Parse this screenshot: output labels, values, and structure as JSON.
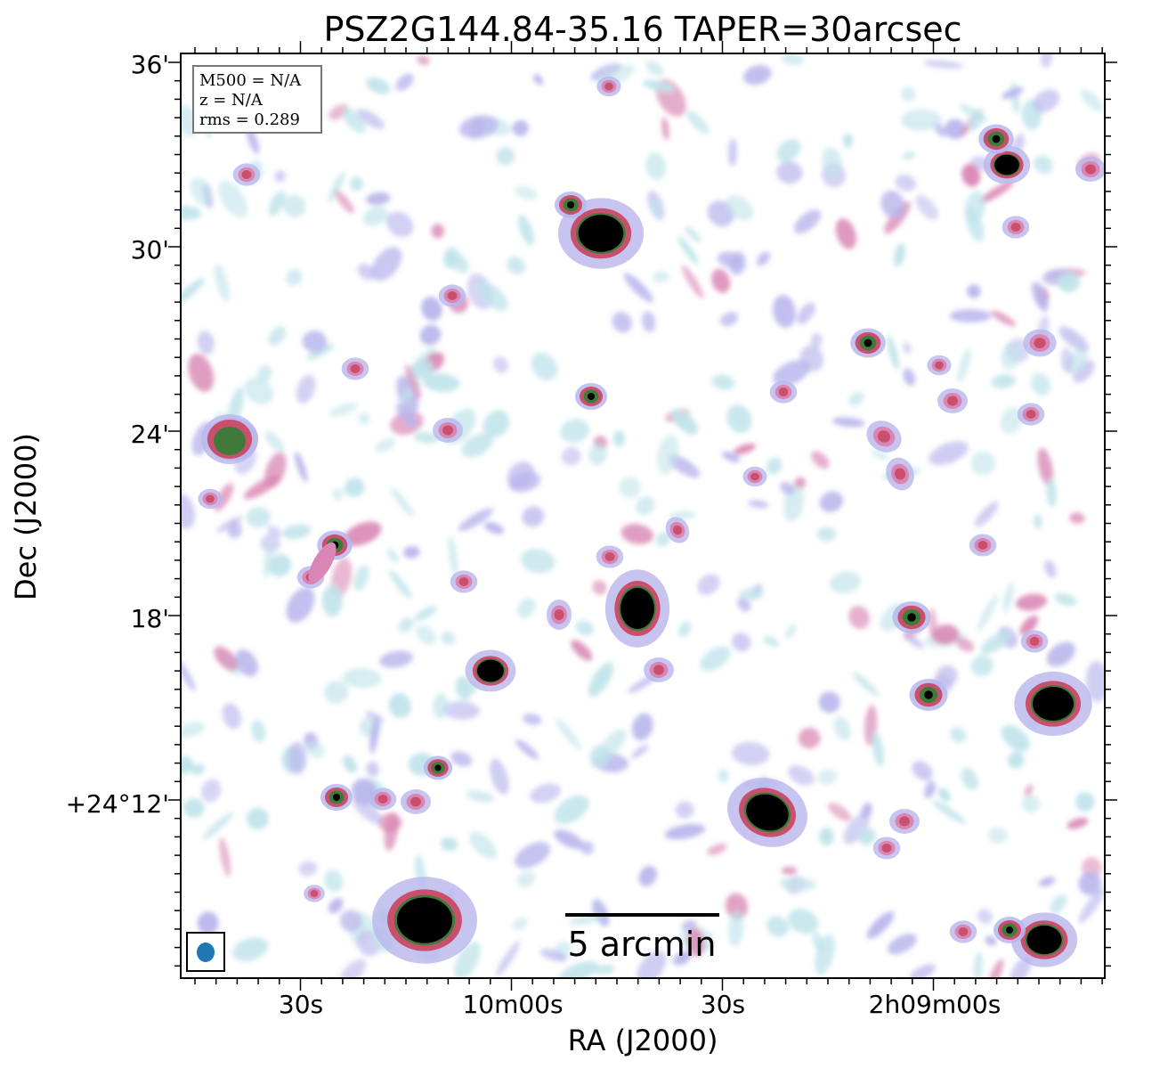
{
  "figure": {
    "title": "PSZ2G144.84-35.16 TAPER=30arcsec",
    "xlabel": "RA (J2000)",
    "ylabel": "Dec (J2000)"
  },
  "info_box": {
    "lines": [
      "M500 = N/A",
      "z = N/A",
      "rms = 0.289"
    ]
  },
  "scale_bar": {
    "label": "5 arcmin"
  },
  "axes": {
    "x_ticks": [
      "30s",
      "10m00s",
      "30s",
      "2h09m00s"
    ],
    "y_ticks": [
      "36'",
      "30'",
      "24'",
      "18'",
      "+24°12'"
    ]
  },
  "beam": {
    "color": "#1f77b4"
  },
  "colors": {
    "faint": "#bfe3ea",
    "low": "#b9b6ec",
    "mid": "#d986b4",
    "high": "#c9506d",
    "peak_ring": "#3f7a3a",
    "core": "#000000"
  }
}
